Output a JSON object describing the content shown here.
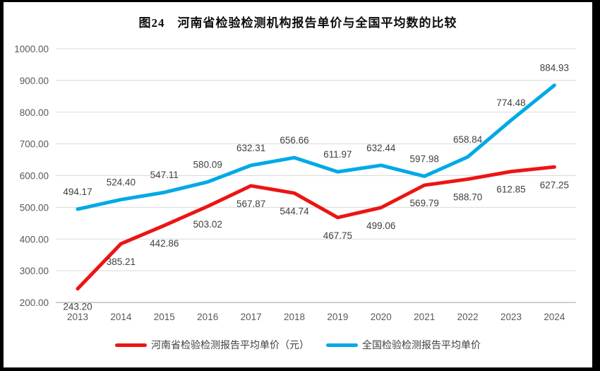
{
  "chart_data": {
    "type": "line",
    "title": "图24　河南省检验检测机构报告单价与全国平均数的比较",
    "categories": [
      "2013",
      "2014",
      "2015",
      "2016",
      "2017",
      "2018",
      "2019",
      "2020",
      "2021",
      "2022",
      "2023",
      "2024"
    ],
    "series": [
      {
        "name": "河南省检验检测报告平均单价（元）",
        "color": "#ec1414",
        "label_position": "below",
        "values": [
          243.2,
          385.21,
          442.86,
          503.02,
          567.87,
          544.74,
          467.75,
          499.06,
          569.79,
          588.7,
          612.85,
          627.25
        ]
      },
      {
        "name": "全国检验检测报告平均单价",
        "color": "#00a9e6",
        "label_position": "above",
        "values": [
          494.17,
          524.4,
          547.11,
          580.09,
          632.31,
          656.66,
          611.97,
          632.44,
          597.98,
          658.84,
          774.48,
          884.93
        ]
      }
    ],
    "ylim": [
      200,
      1000
    ],
    "ytick_step": 100,
    "ytick_labels": [
      "200.00",
      "300.00",
      "400.00",
      "500.00",
      "600.00",
      "700.00",
      "800.00",
      "900.00",
      "1000.00"
    ],
    "xlabel": "",
    "ylabel": "",
    "grid": "horizontal",
    "legend_position": "bottom",
    "label_decimals": 2
  },
  "colors": {
    "data_label": "#404040",
    "tick_label": "#595959",
    "gridline": "#d9d9d9",
    "axis_line": "#bfbfbf",
    "frame_border": "#000000",
    "background": "#ffffff"
  }
}
